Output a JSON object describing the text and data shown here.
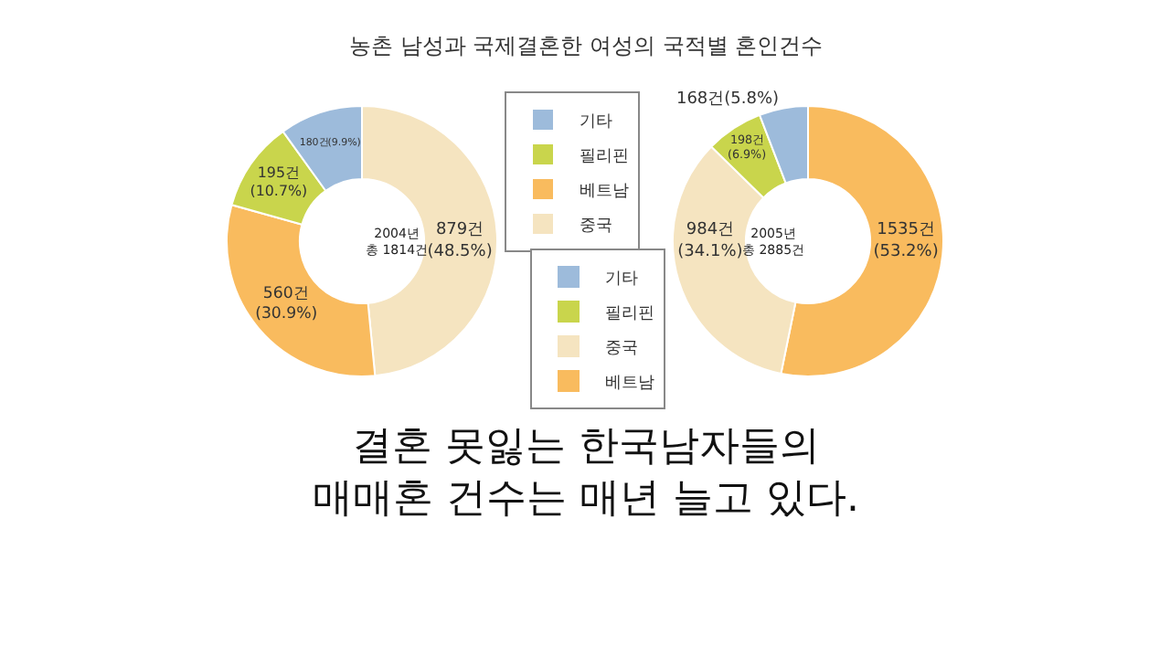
{
  "chart_data": [
    {
      "type": "donut",
      "title": "농촌 남성과 국제결혼한 여성의 국적별 혼인건수",
      "categories": [
        "중국",
        "베트남",
        "필리핀",
        "기타"
      ],
      "values": [
        879,
        560,
        195,
        180
      ],
      "colors": [
        "#f5e4c0",
        "#f9bb5e",
        "#c9d54c",
        "#9dbbdb"
      ],
      "value_labels": [
        "879건\n(48.5%)",
        "560건\n(30.9%)",
        "195건\n(10.7%)",
        "180건(9.9%)"
      ],
      "annotations": [
        "2004년\n총 1814건"
      ],
      "legend": "right"
    },
    {
      "type": "donut",
      "categories": [
        "베트남",
        "중국",
        "필리핀",
        "기타"
      ],
      "values": [
        1535,
        984,
        198,
        168
      ],
      "colors": [
        "#f9bb5e",
        "#f5e4c0",
        "#c9d54c",
        "#9dbbdb"
      ],
      "value_labels": [
        "1535건\n(53.2%)",
        "984건\n(34.1%)",
        "198건\n(6.9%)",
        "168건(5.8%)"
      ],
      "annotations": [
        "2005년\n총 2885건",
        "결혼 못잃는 한국남자들의\n매매혼 건수는 매년 늘고 있다."
      ],
      "legend": "left"
    }
  ]
}
